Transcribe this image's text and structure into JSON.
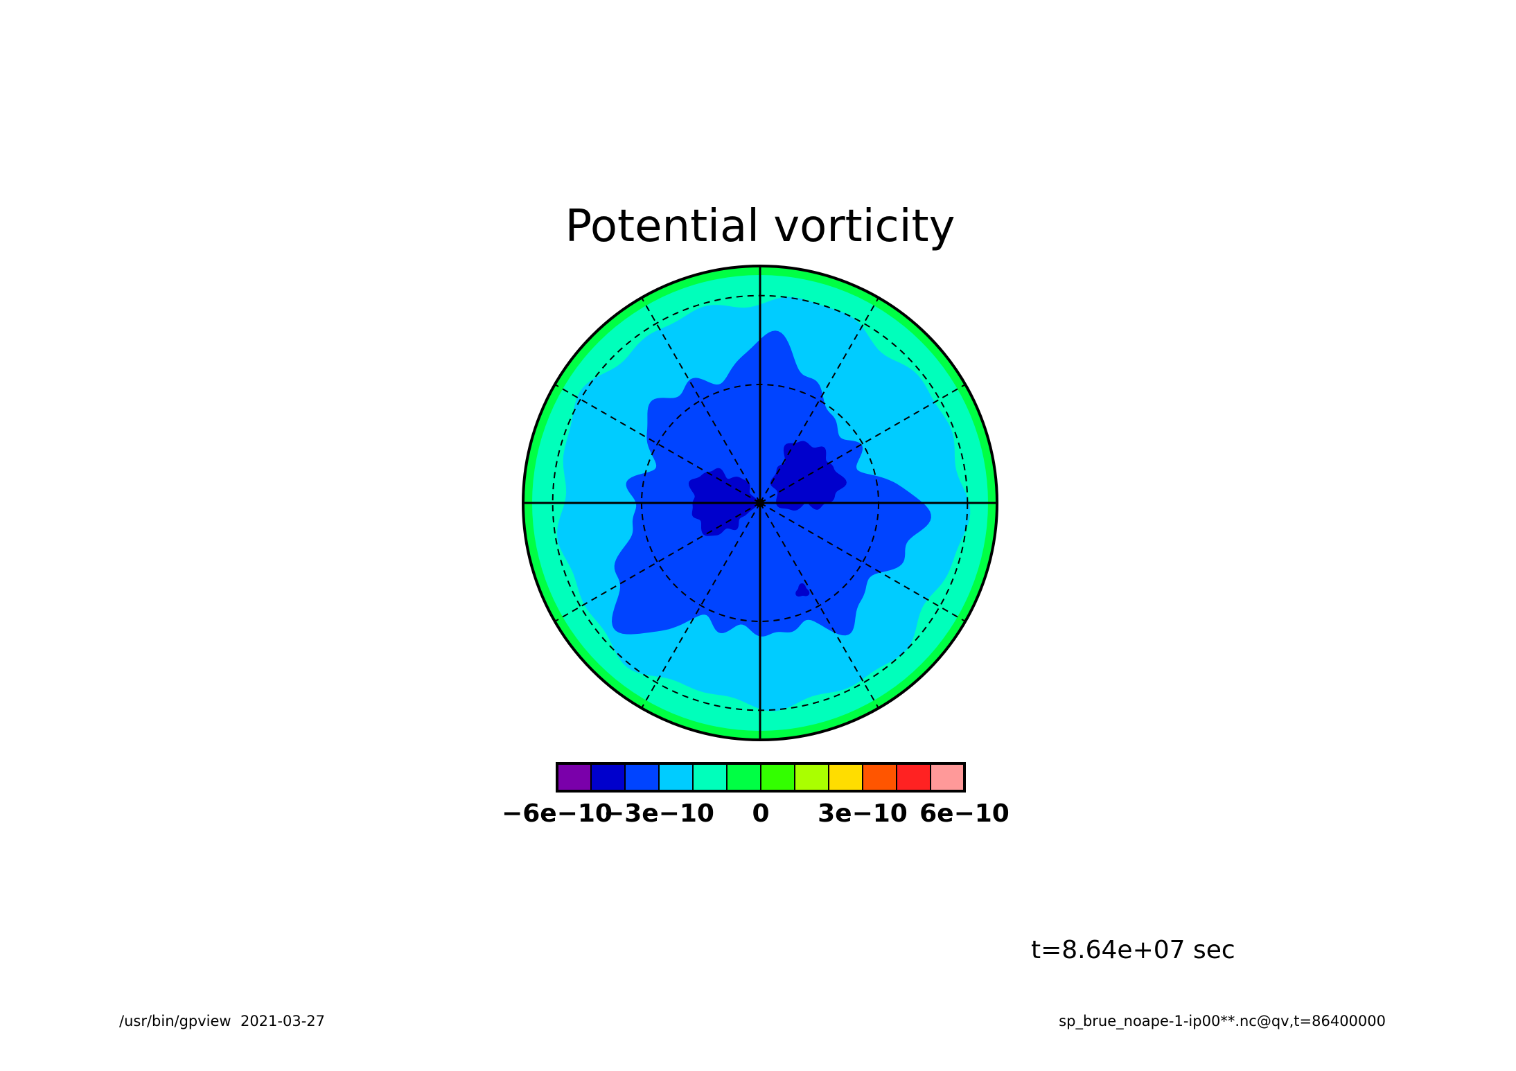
{
  "chart_data": {
    "type": "heatmap",
    "title": "Potential vorticity",
    "projection": "polar stereographic",
    "grid": true,
    "colorbar": {
      "orientation": "horizontal",
      "placement": "bottom",
      "colors": [
        "#7a00aa",
        "#0000cc",
        "#0044ff",
        "#00ccff",
        "#00ffbb",
        "#00ff44",
        "#33ff00",
        "#aaff00",
        "#ffdd00",
        "#ff5500",
        "#ff2222",
        "#ff9999"
      ],
      "levels": [
        -6e-10,
        -5e-10,
        -4e-10,
        -3e-10,
        -2e-10,
        -1e-10,
        0,
        1e-10,
        2e-10,
        3e-10,
        4e-10,
        5e-10,
        6e-10
      ],
      "tick_labels": [
        {
          "level": -6e-10,
          "text": "−6e−10"
        },
        {
          "level": -3e-10,
          "text": "−3e−10"
        },
        {
          "level": 0,
          "text": "0"
        },
        {
          "level": 3e-10,
          "text": "3e−10"
        },
        {
          "level": 6e-10,
          "text": "6e−10"
        }
      ]
    },
    "field_bands": [
      {
        "range": [
          -5e-10,
          -4e-10
        ],
        "color": "#0000cc"
      },
      {
        "range": [
          -4e-10,
          -3e-10
        ],
        "color": "#0044ff"
      },
      {
        "range": [
          -3e-10,
          -2e-10
        ],
        "color": "#00ccff"
      },
      {
        "range": [
          -2e-10,
          -1e-10
        ],
        "color": "#00ffbb"
      },
      {
        "range": [
          -1e-10,
          0
        ],
        "color": "#00ff44"
      }
    ],
    "annotation": "t=8.64e+07 sec"
  },
  "footer": {
    "left": "/usr/bin/gpview  2021-03-27",
    "right": "sp_brue_noape-1-ip00**.nc@qv,t=86400000"
  }
}
